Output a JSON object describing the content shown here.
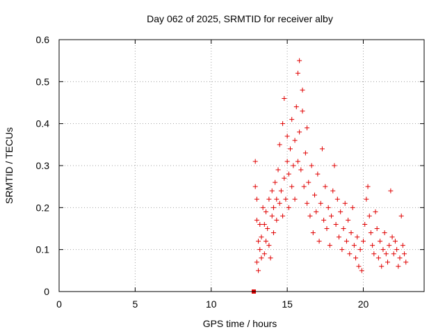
{
  "chart_data": {
    "type": "scatter",
    "title": "Day 062 of 2025, SRMTID for receiver alby",
    "xlabel": "GPS time / hours",
    "ylabel": "SRMTID / TECUs",
    "xlim": [
      0,
      24
    ],
    "ylim": [
      0,
      0.6
    ],
    "xticks": [
      0,
      5,
      10,
      15,
      20
    ],
    "yticks": [
      0,
      0.1,
      0.2,
      0.3,
      0.4,
      0.5,
      0.6
    ],
    "xtick_labels": [
      "0",
      "5",
      "10",
      "15",
      "20"
    ],
    "ytick_labels": [
      "0",
      "0.1",
      "0.2",
      "0.3",
      "0.4",
      "0.5",
      "0.6"
    ],
    "grid": true,
    "marker": "+",
    "color": "#e00000",
    "square_marker": {
      "x": 12.8,
      "y": 0
    },
    "series": [
      {
        "name": "SRMTID",
        "x": [
          12.9,
          12.9,
          13.0,
          13.0,
          13.0,
          13.1,
          13.1,
          13.2,
          13.2,
          13.3,
          13.3,
          13.4,
          13.5,
          13.5,
          13.6,
          13.6,
          13.7,
          13.8,
          13.8,
          13.9,
          14.0,
          14.0,
          14.1,
          14.1,
          14.2,
          14.3,
          14.3,
          14.4,
          14.5,
          14.5,
          14.6,
          14.7,
          14.7,
          14.8,
          14.8,
          14.9,
          15.0,
          15.0,
          15.1,
          15.1,
          15.2,
          15.3,
          15.3,
          15.4,
          15.5,
          15.5,
          15.6,
          15.7,
          15.7,
          15.8,
          15.8,
          15.9,
          16.0,
          16.0,
          16.1,
          16.2,
          16.3,
          16.3,
          16.4,
          16.5,
          16.6,
          16.7,
          16.8,
          16.9,
          17.0,
          17.1,
          17.2,
          17.3,
          17.4,
          17.5,
          17.6,
          17.7,
          17.8,
          17.9,
          18.0,
          18.1,
          18.2,
          18.3,
          18.4,
          18.5,
          18.6,
          18.7,
          18.8,
          18.9,
          19.0,
          19.1,
          19.2,
          19.3,
          19.4,
          19.5,
          19.6,
          19.7,
          19.8,
          19.9,
          20.0,
          20.1,
          20.2,
          20.3,
          20.4,
          20.5,
          20.6,
          20.7,
          20.8,
          20.9,
          21.0,
          21.1,
          21.2,
          21.3,
          21.4,
          21.5,
          21.6,
          21.7,
          21.8,
          21.9,
          22.0,
          22.1,
          22.2,
          22.3,
          22.4,
          22.5,
          22.6,
          22.7,
          22.8
        ],
        "y": [
          0.31,
          0.25,
          0.17,
          0.07,
          0.22,
          0.12,
          0.05,
          0.1,
          0.16,
          0.08,
          0.13,
          0.2,
          0.16,
          0.09,
          0.19,
          0.12,
          0.15,
          0.11,
          0.22,
          0.08,
          0.18,
          0.24,
          0.14,
          0.2,
          0.26,
          0.17,
          0.22,
          0.29,
          0.21,
          0.35,
          0.24,
          0.4,
          0.18,
          0.46,
          0.27,
          0.22,
          0.31,
          0.37,
          0.2,
          0.28,
          0.34,
          0.25,
          0.41,
          0.3,
          0.36,
          0.22,
          0.44,
          0.31,
          0.52,
          0.55,
          0.38,
          0.29,
          0.43,
          0.48,
          0.25,
          0.33,
          0.21,
          0.39,
          0.26,
          0.18,
          0.3,
          0.14,
          0.23,
          0.19,
          0.28,
          0.12,
          0.21,
          0.34,
          0.17,
          0.25,
          0.15,
          0.2,
          0.11,
          0.18,
          0.24,
          0.3,
          0.16,
          0.22,
          0.13,
          0.19,
          0.1,
          0.15,
          0.21,
          0.12,
          0.17,
          0.09,
          0.14,
          0.2,
          0.11,
          0.08,
          0.13,
          0.06,
          0.1,
          0.05,
          0.12,
          0.16,
          0.22,
          0.25,
          0.18,
          0.14,
          0.11,
          0.09,
          0.19,
          0.15,
          0.08,
          0.12,
          0.06,
          0.1,
          0.14,
          0.09,
          0.07,
          0.11,
          0.24,
          0.13,
          0.09,
          0.12,
          0.1,
          0.06,
          0.08,
          0.18,
          0.11,
          0.09,
          0.07
        ]
      }
    ]
  }
}
